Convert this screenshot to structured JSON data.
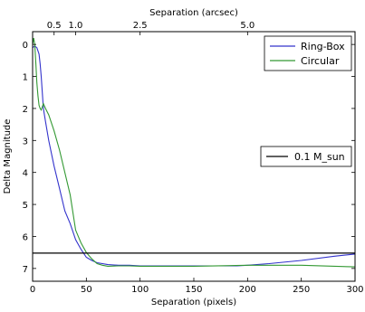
{
  "chart_data": {
    "type": "line",
    "xlabel": "Separation (pixels)",
    "ylabel": "Delta Magnitude",
    "top_axis_label": "Separation (arcsec)",
    "xlim": [
      0,
      300
    ],
    "ylim": [
      7.4,
      -0.4
    ],
    "x_ticks": [
      0,
      50,
      100,
      150,
      200,
      250,
      300
    ],
    "y_ticks": [
      0,
      1,
      2,
      3,
      4,
      5,
      6,
      7
    ],
    "top_ticks": [
      {
        "label": "0.5",
        "x": 20
      },
      {
        "label": "1.0",
        "x": 40
      },
      {
        "label": "2.5",
        "x": 100
      },
      {
        "label": "5.0",
        "x": 200
      }
    ],
    "grid": false,
    "series": [
      {
        "name": "Ring-Box",
        "color": "#3333cc",
        "x": [
          0,
          2,
          4,
          6,
          7,
          8,
          10,
          12,
          15,
          20,
          25,
          30,
          35,
          40,
          45,
          50,
          55,
          60,
          70,
          80,
          90,
          100,
          150,
          190,
          200,
          220,
          250,
          280,
          300
        ],
        "y": [
          0.1,
          0.05,
          0.1,
          0.3,
          0.6,
          1.0,
          2.0,
          2.4,
          3.0,
          3.8,
          4.5,
          5.2,
          5.6,
          6.1,
          6.4,
          6.65,
          6.75,
          6.82,
          6.88,
          6.9,
          6.9,
          6.92,
          6.92,
          6.92,
          6.9,
          6.85,
          6.75,
          6.62,
          6.55
        ]
      },
      {
        "name": "Circular",
        "color": "#339933",
        "x": [
          0,
          1,
          2,
          3,
          4,
          5,
          6,
          7,
          8,
          10,
          12,
          15,
          20,
          25,
          30,
          35,
          40,
          45,
          50,
          55,
          60,
          65,
          70,
          80,
          90,
          100,
          150,
          200,
          250,
          300
        ],
        "y": [
          0.0,
          -0.2,
          0.0,
          0.6,
          1.2,
          1.6,
          1.9,
          2.0,
          2.05,
          1.85,
          2.0,
          2.2,
          2.7,
          3.3,
          4.0,
          4.7,
          5.8,
          6.2,
          6.5,
          6.7,
          6.85,
          6.9,
          6.93,
          6.92,
          6.92,
          6.93,
          6.93,
          6.9,
          6.9,
          6.95
        ]
      }
    ],
    "hlines": [
      {
        "name": "0.1 M_sun",
        "y": 6.52,
        "color": "#000000"
      }
    ],
    "legends": [
      {
        "entries": [
          "Ring-Box",
          "Circular"
        ],
        "placement": "top-right"
      },
      {
        "entries": [
          "0.1 M_sun"
        ],
        "placement": "center-right"
      }
    ]
  }
}
